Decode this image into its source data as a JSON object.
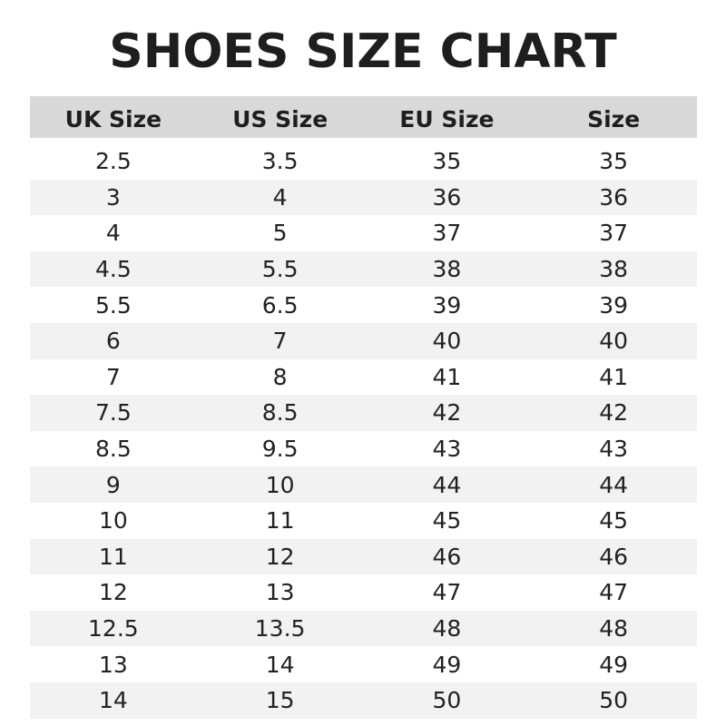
{
  "title": "SHOES SIZE CHART",
  "headers": [
    "UK Size",
    "US Size",
    "EU Size",
    "Size"
  ],
  "rows": [
    [
      "2.5",
      "3.5",
      "35",
      "35"
    ],
    [
      "3",
      "4",
      "36",
      "36"
    ],
    [
      "4",
      "5",
      "37",
      "37"
    ],
    [
      "4.5",
      "5.5",
      "38",
      "38"
    ],
    [
      "5.5",
      "6.5",
      "39",
      "39"
    ],
    [
      "6",
      "7",
      "40",
      "40"
    ],
    [
      "7",
      "8",
      "41",
      "41"
    ],
    [
      "7.5",
      "8.5",
      "42",
      "42"
    ],
    [
      "8.5",
      "9.5",
      "43",
      "43"
    ],
    [
      "9",
      "10",
      "44",
      "44"
    ],
    [
      "10",
      "11",
      "45",
      "45"
    ],
    [
      "11",
      "12",
      "46",
      "46"
    ],
    [
      "12",
      "13",
      "47",
      "47"
    ],
    [
      "12.5",
      "13.5",
      "48",
      "48"
    ],
    [
      "13",
      "14",
      "49",
      "49"
    ],
    [
      "14",
      "15",
      "50",
      "50"
    ]
  ],
  "colors": {
    "header_bg": "#d9d9d9",
    "stripe_bg": "#f2f2f2",
    "text": "#1e1e1e"
  }
}
